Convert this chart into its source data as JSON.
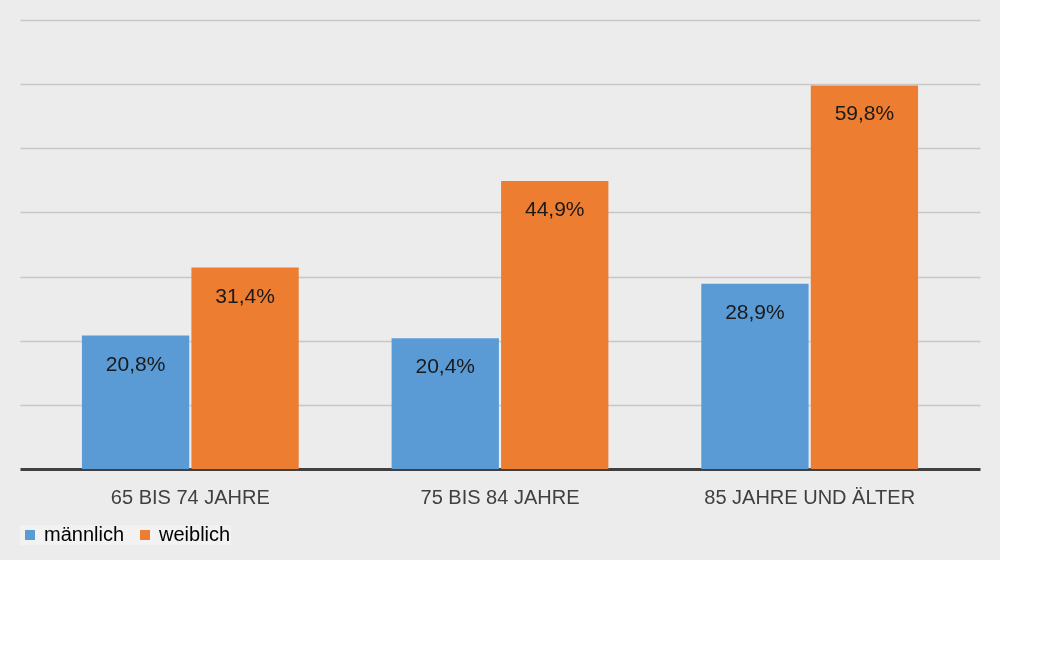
{
  "chart_data": {
    "type": "bar",
    "categories": [
      "65 BIS 74 JAHRE",
      "75 BIS 84 JAHRE",
      "85 JAHRE UND ÄLTER"
    ],
    "series": [
      {
        "name": "männlich",
        "color": "#5b9bd5",
        "values": [
          20.8,
          20.4,
          28.9
        ],
        "value_labels": [
          "20,8%",
          "20,4%",
          "28,9%"
        ]
      },
      {
        "name": "weiblich",
        "color": "#ed7d31",
        "values": [
          31.4,
          44.9,
          59.8
        ],
        "value_labels": [
          "31,4%",
          "44,9%",
          "59,8%"
        ]
      }
    ],
    "ylim": [
      0,
      70
    ],
    "yticks": [
      {
        "value": 0,
        "label": null
      },
      {
        "value": 10,
        "label": null
      },
      {
        "value": 20,
        "label": null
      },
      {
        "value": 30,
        "label": null
      },
      {
        "value": 40,
        "label": null
      },
      {
        "value": 50,
        "label": null
      },
      {
        "value": 60,
        "label": null
      },
      {
        "value": 70,
        "label": null
      }
    ],
    "grid": "y",
    "legend": "bottom",
    "tick_labels": "x"
  }
}
